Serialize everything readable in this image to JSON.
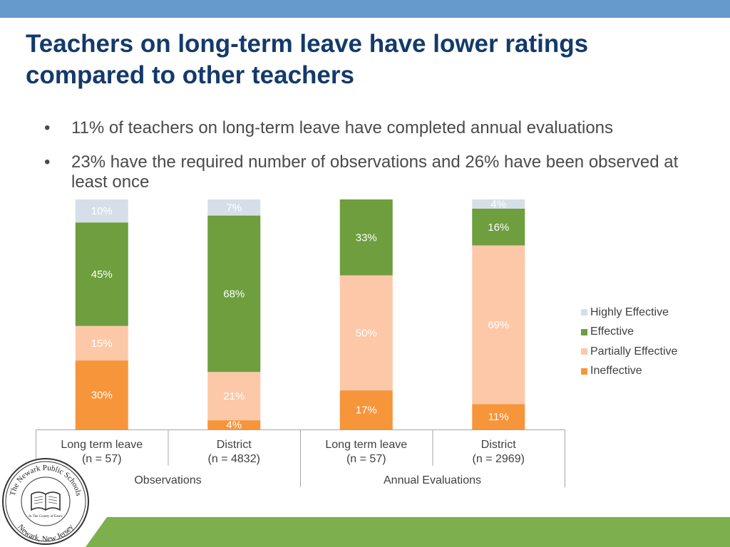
{
  "title": "Teachers on long-term leave have lower ratings compared to other teachers",
  "bullets": [
    "11% of teachers on long-term leave have completed annual evaluations",
    "23% have the required number of observations and 26% have been observed at least once"
  ],
  "bullet_symbol": "•",
  "colors": {
    "top_bar": "#6699cc",
    "title": "#133a6a",
    "bottom_band": "#7db04d"
  },
  "seal": {
    "top_text": "The Newark Public Schools",
    "bottom_text": "Newark, New Jersey",
    "inner_text": "In The County of Essex"
  },
  "chart_data": {
    "type": "bar",
    "stacked": true,
    "percent": true,
    "title": "",
    "categories": [
      [
        "Long term leave",
        "(n = 57)"
      ],
      [
        "District",
        "(n = 4832)"
      ],
      [
        "Long term leave",
        "(n = 57)"
      ],
      [
        "District",
        "(n = 2969)"
      ]
    ],
    "groups": [
      {
        "label": "Observations",
        "categories": [
          0,
          1
        ]
      },
      {
        "label": "Annual Evaluations",
        "categories": [
          2,
          3
        ]
      }
    ],
    "series": [
      {
        "name": "Ineffective",
        "color": "#f7953b",
        "label_color": "#ffffff",
        "values": [
          30,
          4,
          17,
          11
        ]
      },
      {
        "name": "Partially Effective",
        "color": "#fdc8a8",
        "label_color": "#ffffff",
        "values": [
          15,
          21,
          50,
          69
        ]
      },
      {
        "name": "Effective",
        "color": "#6e9e3e",
        "label_color": "#ffffff",
        "values": [
          45,
          68,
          33,
          16
        ]
      },
      {
        "name": "Highly Effective",
        "color": "#d6dfe8",
        "label_color": "#ffffff",
        "values": [
          10,
          7,
          0,
          4
        ]
      }
    ],
    "value_suffix": "%",
    "ylim": [
      0,
      100
    ],
    "legend_position": "right",
    "grid": false
  }
}
